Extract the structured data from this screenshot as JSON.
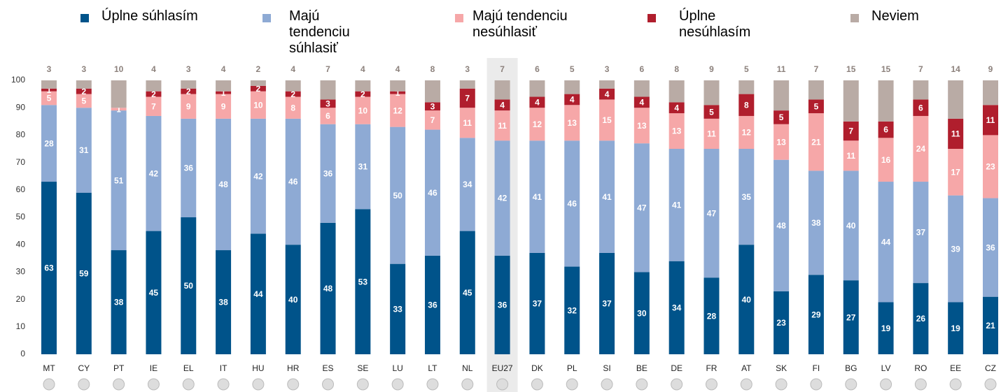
{
  "chart_data": {
    "type": "stacked_bar",
    "categories": [
      "MT",
      "CY",
      "PT",
      "IE",
      "EL",
      "IT",
      "HU",
      "HR",
      "ES",
      "SE",
      "LU",
      "LT",
      "NL",
      "EU27",
      "DK",
      "PL",
      "SI",
      "BE",
      "DE",
      "FR",
      "AT",
      "SK",
      "FI",
      "BG",
      "LV",
      "RO",
      "EE",
      "CZ"
    ],
    "series": [
      {
        "name": "Úplne súhlasím",
        "color": "#00538a",
        "values": [
          63,
          59,
          38,
          45,
          50,
          38,
          44,
          40,
          48,
          53,
          33,
          36,
          45,
          36,
          37,
          32,
          37,
          30,
          34,
          28,
          40,
          23,
          29,
          27,
          19,
          26,
          19,
          21
        ]
      },
      {
        "name": "Majú tendenciu súhlasiť",
        "color": "#8eaad4",
        "values": [
          28,
          31,
          51,
          42,
          36,
          48,
          42,
          46,
          36,
          31,
          50,
          46,
          34,
          42,
          41,
          46,
          41,
          47,
          41,
          47,
          35,
          48,
          38,
          40,
          44,
          37,
          39,
          36
        ]
      },
      {
        "name": "Majú tendenciu nesúhlasiť",
        "color": "#f6a7a8",
        "values": [
          5,
          5,
          1,
          7,
          9,
          9,
          10,
          8,
          6,
          10,
          12,
          7,
          11,
          11,
          12,
          13,
          15,
          13,
          13,
          11,
          12,
          13,
          21,
          11,
          16,
          24,
          17,
          23
        ]
      },
      {
        "name": "Úplne nesúhlasím",
        "color": "#b01e2d",
        "values": [
          1,
          2,
          null,
          2,
          2,
          1,
          2,
          2,
          3,
          2,
          1,
          3,
          7,
          4,
          4,
          4,
          4,
          4,
          4,
          5,
          8,
          5,
          5,
          7,
          6,
          6,
          11,
          11
        ]
      },
      {
        "name": "Neviem",
        "color": "#b9aba5",
        "values": [
          3,
          3,
          10,
          4,
          3,
          4,
          2,
          4,
          7,
          4,
          4,
          8,
          3,
          7,
          6,
          5,
          3,
          6,
          8,
          9,
          5,
          11,
          7,
          15,
          15,
          7,
          14,
          9
        ]
      }
    ],
    "ylim": [
      0,
      100
    ],
    "yticks": [
      0,
      10,
      20,
      30,
      40,
      50,
      60,
      70,
      80,
      90,
      100
    ]
  }
}
